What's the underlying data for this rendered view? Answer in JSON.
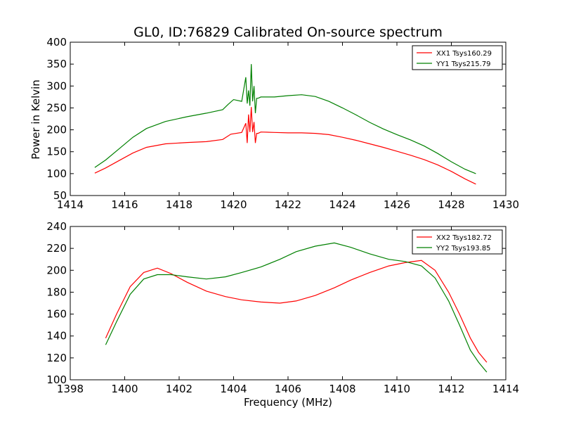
{
  "figure": {
    "title": "GL0, ID:76829 Calibrated On-source spectrum",
    "ylabel": "Power in Kelvin",
    "xlabel": "Frequency (MHz)"
  },
  "chart_data": [
    {
      "type": "line",
      "title": "GL0, ID:76829 Calibrated On-source spectrum",
      "xlabel": "",
      "ylabel": "Power in Kelvin",
      "xlim": [
        1414,
        1430
      ],
      "ylim": [
        50,
        400
      ],
      "xticks": [
        1414,
        1416,
        1418,
        1420,
        1422,
        1424,
        1426,
        1428,
        1430
      ],
      "yticks": [
        50,
        100,
        150,
        200,
        250,
        300,
        350,
        400
      ],
      "grid": false,
      "legend_position": "top-right",
      "series": [
        {
          "name": "XX1 Tsys160.29",
          "color": "#ff0000",
          "x": [
            1414.9,
            1415.3,
            1415.8,
            1416.3,
            1416.8,
            1417.5,
            1418.3,
            1419.0,
            1419.6,
            1419.9,
            1420.3,
            1420.45,
            1420.5,
            1420.55,
            1420.6,
            1420.65,
            1420.7,
            1420.75,
            1420.8,
            1420.85,
            1420.9,
            1421.0,
            1421.5,
            1422.0,
            1422.5,
            1423.0,
            1423.5,
            1424.0,
            1424.5,
            1425.0,
            1425.5,
            1426.0,
            1426.5,
            1427.0,
            1427.5,
            1428.0,
            1428.5,
            1428.9
          ],
          "y": [
            101,
            113,
            130,
            147,
            160,
            168,
            171,
            173,
            178,
            190,
            194,
            215,
            170,
            235,
            195,
            252,
            195,
            218,
            170,
            192,
            192,
            195,
            194,
            193,
            193,
            192,
            189,
            183,
            176,
            168,
            160,
            151,
            142,
            132,
            120,
            105,
            88,
            76
          ]
        },
        {
          "name": "YY1 Tsys215.79",
          "color": "#008000",
          "x": [
            1414.9,
            1415.3,
            1415.8,
            1416.3,
            1416.8,
            1417.5,
            1418.3,
            1419.0,
            1419.6,
            1419.8,
            1420.0,
            1420.3,
            1420.45,
            1420.5,
            1420.55,
            1420.6,
            1420.65,
            1420.7,
            1420.75,
            1420.8,
            1420.85,
            1420.9,
            1421.0,
            1421.5,
            1422.0,
            1422.5,
            1423.0,
            1423.5,
            1424.0,
            1424.5,
            1425.0,
            1425.5,
            1426.0,
            1426.5,
            1427.0,
            1427.5,
            1428.0,
            1428.5,
            1428.9
          ],
          "y": [
            114,
            131,
            157,
            183,
            203,
            219,
            230,
            238,
            246,
            258,
            269,
            265,
            320,
            260,
            290,
            255,
            350,
            265,
            300,
            238,
            272,
            272,
            275,
            275,
            278,
            280,
            276,
            265,
            250,
            234,
            217,
            202,
            189,
            177,
            163,
            146,
            127,
            110,
            100
          ]
        }
      ]
    },
    {
      "type": "line",
      "title": "",
      "xlabel": "Frequency (MHz)",
      "ylabel": "",
      "xlim": [
        1398,
        1414
      ],
      "ylim": [
        100,
        240
      ],
      "xticks": [
        1398,
        1400,
        1402,
        1404,
        1406,
        1408,
        1410,
        1412,
        1414
      ],
      "yticks": [
        100,
        120,
        140,
        160,
        180,
        200,
        220,
        240
      ],
      "grid": false,
      "legend_position": "top-right",
      "series": [
        {
          "name": "XX2 Tsys182.72",
          "color": "#ff0000",
          "x": [
            1399.3,
            1399.7,
            1400.2,
            1400.7,
            1401.2,
            1401.7,
            1402.3,
            1403.0,
            1403.7,
            1404.3,
            1405.0,
            1405.7,
            1406.3,
            1407.0,
            1407.7,
            1408.3,
            1409.0,
            1409.7,
            1410.3,
            1410.9,
            1411.4,
            1411.9,
            1412.3,
            1412.7,
            1413.0,
            1413.3
          ],
          "y": [
            138,
            160,
            185,
            198,
            202,
            197,
            189,
            181,
            176,
            173,
            171,
            170,
            172,
            177,
            184,
            191,
            198,
            204,
            207,
            209,
            200,
            180,
            160,
            138,
            125,
            116
          ]
        },
        {
          "name": "YY2 Tsys193.85",
          "color": "#008000",
          "x": [
            1399.3,
            1399.7,
            1400.2,
            1400.7,
            1401.2,
            1401.7,
            1402.3,
            1403.0,
            1403.7,
            1404.3,
            1405.0,
            1405.7,
            1406.3,
            1407.0,
            1407.7,
            1408.3,
            1409.0,
            1409.7,
            1410.3,
            1410.9,
            1411.4,
            1411.9,
            1412.3,
            1412.7,
            1413.0,
            1413.3
          ],
          "y": [
            132,
            153,
            178,
            192,
            196,
            196,
            194,
            192,
            194,
            198,
            203,
            210,
            217,
            222,
            225,
            221,
            215,
            210,
            208,
            204,
            193,
            172,
            150,
            127,
            116,
            107
          ]
        }
      ]
    }
  ]
}
